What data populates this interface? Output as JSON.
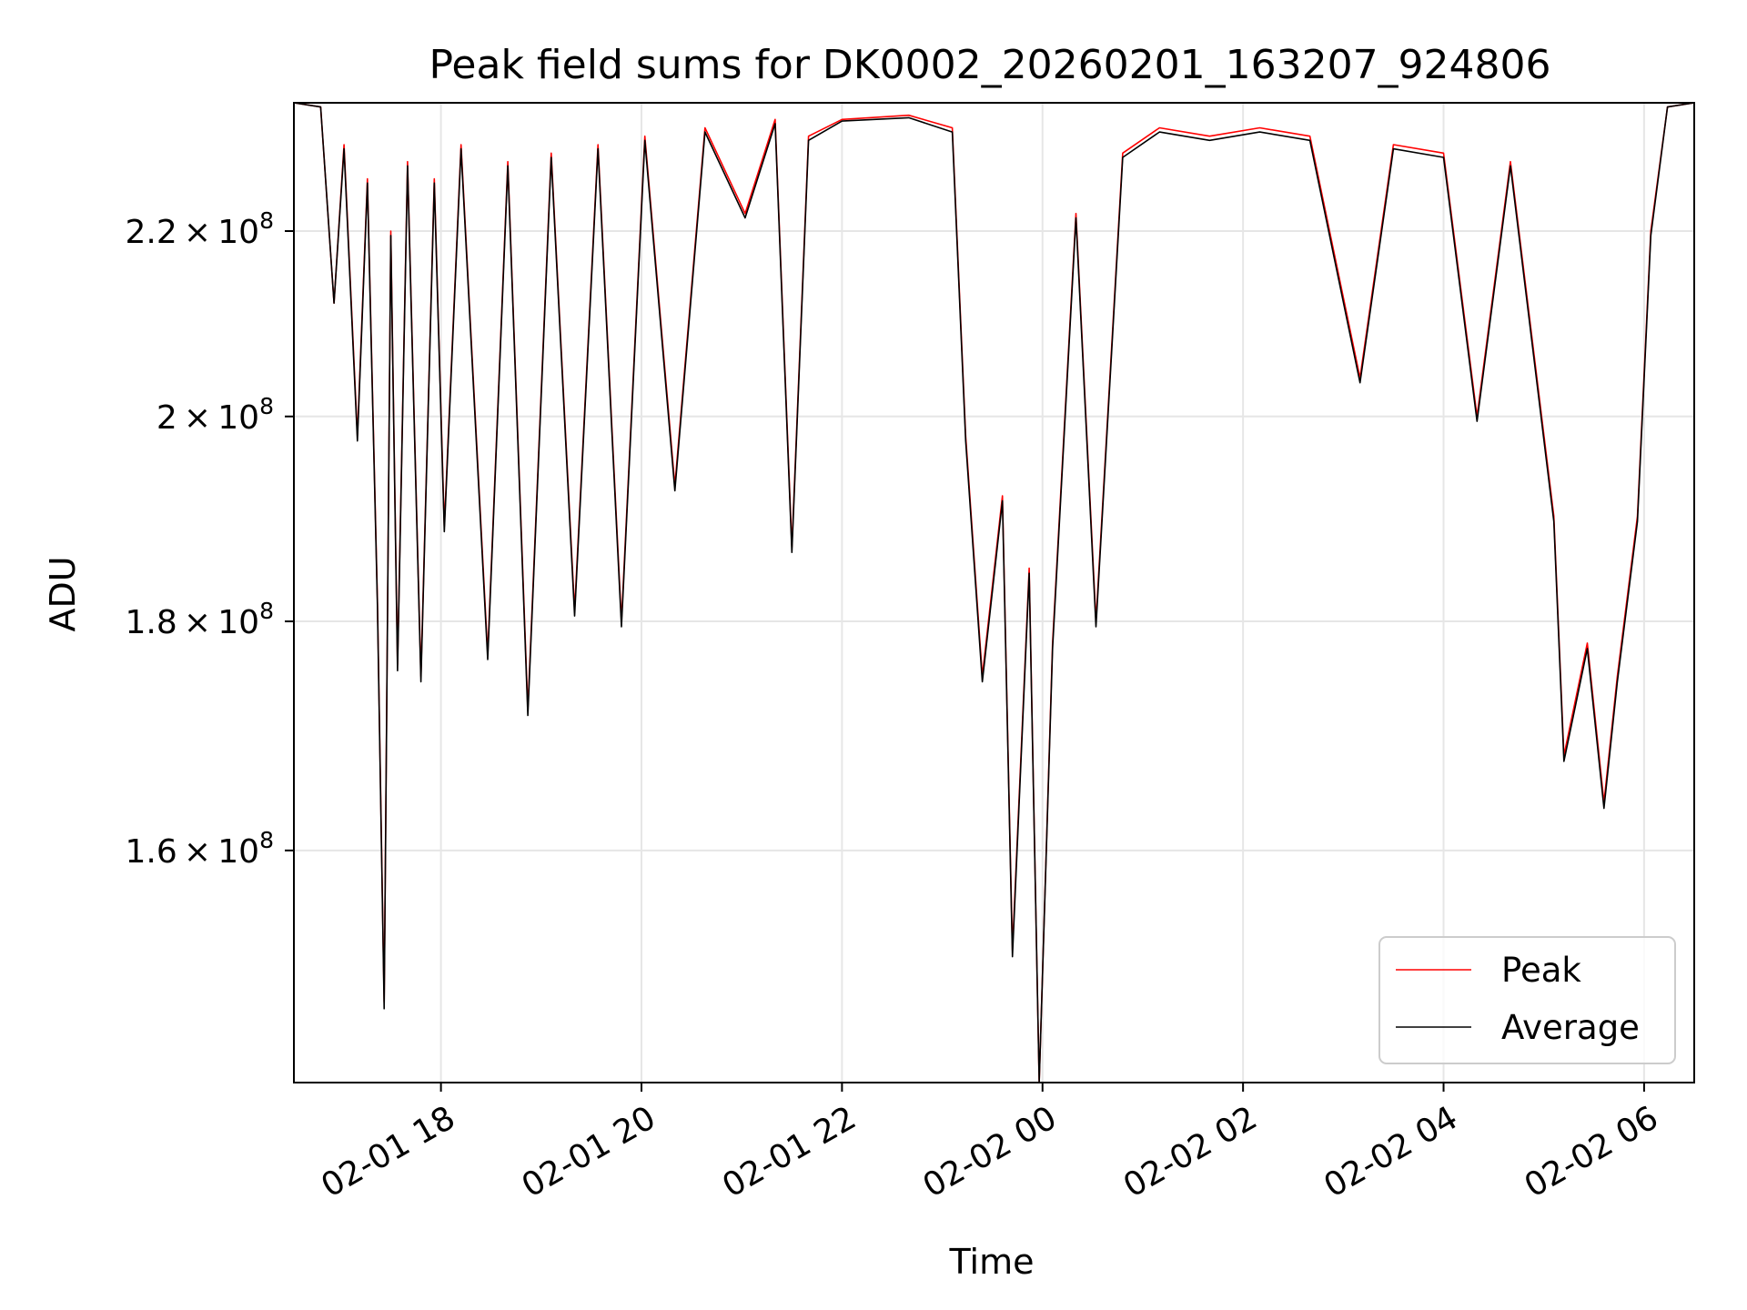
{
  "chart_data": {
    "type": "line",
    "title": "Peak field sums for DK0002_20260201_163207_924806",
    "xlabel": "Time",
    "ylabel": "ADU",
    "x_range": [
      "2026-02-01 16:32",
      "2026-02-02 06:30"
    ],
    "y_scale": "log",
    "ylim": [
      142000000,
      235000000
    ],
    "grid": true,
    "legend_position": "lower-right",
    "x_ticks": [
      {
        "label": "02-01 18",
        "t": "2026-02-01 18:00"
      },
      {
        "label": "02-01 20",
        "t": "2026-02-01 20:00"
      },
      {
        "label": "02-01 22",
        "t": "2026-02-01 22:00"
      },
      {
        "label": "02-02 00",
        "t": "2026-02-02 00:00"
      },
      {
        "label": "02-02 02",
        "t": "2026-02-02 02:00"
      },
      {
        "label": "02-02 04",
        "t": "2026-02-02 04:00"
      },
      {
        "label": "02-02 06",
        "t": "2026-02-02 06:00"
      }
    ],
    "y_ticks": [
      {
        "mantissa": "1.6",
        "exp": "8",
        "value": 160000000
      },
      {
        "mantissa": "1.8",
        "exp": "8",
        "value": 180000000
      },
      {
        "mantissa": "2",
        "exp": "8",
        "value": 200000000
      },
      {
        "mantissa": "2.2",
        "exp": "8",
        "value": 220000000
      }
    ],
    "series": [
      {
        "name": "Peak",
        "color": "#ff0000",
        "points": [
          [
            "2026-02-01 16:32",
            235000000
          ],
          [
            "2026-02-01 16:48",
            234500000
          ],
          [
            "2026-02-01 16:56",
            212000000
          ],
          [
            "2026-02-01 17:02",
            230000000
          ],
          [
            "2026-02-01 17:10",
            198000000
          ],
          [
            "2026-02-01 17:16",
            226000000
          ],
          [
            "2026-02-01 17:22",
            182000000
          ],
          [
            "2026-02-01 17:26",
            148000000
          ],
          [
            "2026-02-01 17:30",
            220000000
          ],
          [
            "2026-02-01 17:34",
            176000000
          ],
          [
            "2026-02-01 17:40",
            228000000
          ],
          [
            "2026-02-01 17:48",
            175000000
          ],
          [
            "2026-02-01 17:56",
            226000000
          ],
          [
            "2026-02-01 18:02",
            189000000
          ],
          [
            "2026-02-01 18:12",
            230000000
          ],
          [
            "2026-02-01 18:28",
            177000000
          ],
          [
            "2026-02-01 18:40",
            228000000
          ],
          [
            "2026-02-01 18:52",
            172000000
          ],
          [
            "2026-02-01 19:06",
            229000000
          ],
          [
            "2026-02-01 19:20",
            181000000
          ],
          [
            "2026-02-01 19:34",
            230000000
          ],
          [
            "2026-02-01 19:48",
            180000000
          ],
          [
            "2026-02-01 20:02",
            231000000
          ],
          [
            "2026-02-01 20:20",
            193000000
          ],
          [
            "2026-02-01 20:38",
            232000000
          ],
          [
            "2026-02-01 21:02",
            222000000
          ],
          [
            "2026-02-01 21:20",
            233000000
          ],
          [
            "2026-02-01 21:30",
            187000000
          ],
          [
            "2026-02-01 21:40",
            231000000
          ],
          [
            "2026-02-01 22:00",
            233000000
          ],
          [
            "2026-02-01 22:40",
            233500000
          ],
          [
            "2026-02-01 23:06",
            232000000
          ],
          [
            "2026-02-01 23:14",
            198000000
          ],
          [
            "2026-02-01 23:24",
            175000000
          ],
          [
            "2026-02-01 23:36",
            192000000
          ],
          [
            "2026-02-01 23:42",
            152000000
          ],
          [
            "2026-02-01 23:52",
            185000000
          ],
          [
            "2026-02-01 23:58",
            140000000
          ],
          [
            "2026-02-02 00:06",
            178000000
          ],
          [
            "2026-02-02 00:20",
            222000000
          ],
          [
            "2026-02-02 00:32",
            180000000
          ],
          [
            "2026-02-02 00:48",
            229000000
          ],
          [
            "2026-02-02 01:10",
            232000000
          ],
          [
            "2026-02-02 01:40",
            231000000
          ],
          [
            "2026-02-02 02:10",
            232000000
          ],
          [
            "2026-02-02 02:40",
            231000000
          ],
          [
            "2026-02-02 03:10",
            204000000
          ],
          [
            "2026-02-02 03:30",
            230000000
          ],
          [
            "2026-02-02 04:00",
            229000000
          ],
          [
            "2026-02-02 04:20",
            200000000
          ],
          [
            "2026-02-02 04:40",
            228000000
          ],
          [
            "2026-02-02 05:06",
            190000000
          ],
          [
            "2026-02-02 05:12",
            168000000
          ],
          [
            "2026-02-02 05:26",
            178000000
          ],
          [
            "2026-02-02 05:36",
            164000000
          ],
          [
            "2026-02-02 05:44",
            175000000
          ],
          [
            "2026-02-02 05:56",
            190000000
          ],
          [
            "2026-02-02 06:04",
            220000000
          ],
          [
            "2026-02-02 06:14",
            234500000
          ],
          [
            "2026-02-02 06:30",
            235000000
          ]
        ]
      },
      {
        "name": "Average",
        "color": "#000000",
        "points": [
          [
            "2026-02-01 16:32",
            235000000
          ],
          [
            "2026-02-01 16:48",
            234500000
          ],
          [
            "2026-02-01 16:56",
            212000000
          ],
          [
            "2026-02-01 17:02",
            229500000
          ],
          [
            "2026-02-01 17:10",
            197500000
          ],
          [
            "2026-02-01 17:16",
            225500000
          ],
          [
            "2026-02-01 17:22",
            181500000
          ],
          [
            "2026-02-01 17:26",
            147500000
          ],
          [
            "2026-02-01 17:30",
            219500000
          ],
          [
            "2026-02-01 17:34",
            175500000
          ],
          [
            "2026-02-01 17:40",
            227500000
          ],
          [
            "2026-02-01 17:48",
            174500000
          ],
          [
            "2026-02-01 17:56",
            225500000
          ],
          [
            "2026-02-01 18:02",
            188500000
          ],
          [
            "2026-02-01 18:12",
            229500000
          ],
          [
            "2026-02-01 18:28",
            176500000
          ],
          [
            "2026-02-01 18:40",
            227500000
          ],
          [
            "2026-02-01 18:52",
            171500000
          ],
          [
            "2026-02-01 19:06",
            228500000
          ],
          [
            "2026-02-01 19:20",
            180500000
          ],
          [
            "2026-02-01 19:34",
            229500000
          ],
          [
            "2026-02-01 19:48",
            179500000
          ],
          [
            "2026-02-01 20:02",
            230500000
          ],
          [
            "2026-02-01 20:20",
            192500000
          ],
          [
            "2026-02-01 20:38",
            231500000
          ],
          [
            "2026-02-01 21:02",
            221500000
          ],
          [
            "2026-02-01 21:20",
            232500000
          ],
          [
            "2026-02-01 21:30",
            186500000
          ],
          [
            "2026-02-01 21:40",
            230500000
          ],
          [
            "2026-02-01 22:00",
            232800000
          ],
          [
            "2026-02-01 22:40",
            233200000
          ],
          [
            "2026-02-01 23:06",
            231500000
          ],
          [
            "2026-02-01 23:14",
            197500000
          ],
          [
            "2026-02-01 23:24",
            174500000
          ],
          [
            "2026-02-01 23:36",
            191500000
          ],
          [
            "2026-02-01 23:42",
            151500000
          ],
          [
            "2026-02-01 23:52",
            184500000
          ],
          [
            "2026-02-01 23:58",
            140000000
          ],
          [
            "2026-02-02 00:06",
            177500000
          ],
          [
            "2026-02-02 00:20",
            221500000
          ],
          [
            "2026-02-02 00:32",
            179500000
          ],
          [
            "2026-02-02 00:48",
            228500000
          ],
          [
            "2026-02-02 01:10",
            231500000
          ],
          [
            "2026-02-02 01:40",
            230500000
          ],
          [
            "2026-02-02 02:10",
            231500000
          ],
          [
            "2026-02-02 02:40",
            230500000
          ],
          [
            "2026-02-02 03:10",
            203500000
          ],
          [
            "2026-02-02 03:30",
            229500000
          ],
          [
            "2026-02-02 04:00",
            228500000
          ],
          [
            "2026-02-02 04:20",
            199500000
          ],
          [
            "2026-02-02 04:40",
            227500000
          ],
          [
            "2026-02-02 05:06",
            189500000
          ],
          [
            "2026-02-02 05:12",
            167500000
          ],
          [
            "2026-02-02 05:26",
            177500000
          ],
          [
            "2026-02-02 05:36",
            163500000
          ],
          [
            "2026-02-02 05:44",
            174500000
          ],
          [
            "2026-02-02 05:56",
            189500000
          ],
          [
            "2026-02-02 06:04",
            219500000
          ],
          [
            "2026-02-02 06:14",
            234500000
          ],
          [
            "2026-02-02 06:30",
            235000000
          ]
        ]
      }
    ]
  }
}
